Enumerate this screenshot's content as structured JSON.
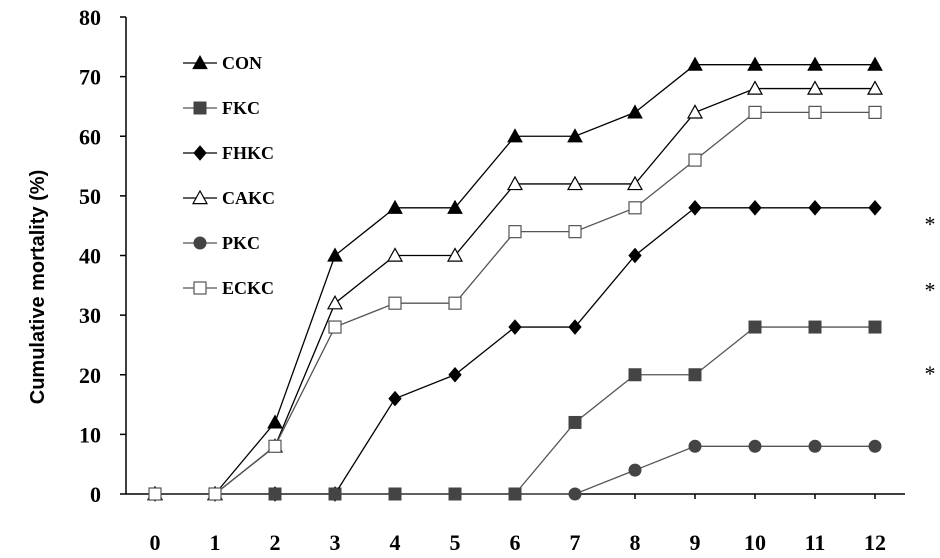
{
  "chart_data": {
    "type": "line",
    "xlabel": "",
    "ylabel": "Cumulative mortality (%)",
    "ylim": [
      0,
      80
    ],
    "yticks": [
      "0",
      "10",
      "20",
      "30",
      "40",
      "50",
      "60",
      "70",
      "80"
    ],
    "x": [
      "0",
      "1",
      "2",
      "3",
      "4",
      "5",
      "6",
      "7",
      "8",
      "9",
      "10",
      "11",
      "12"
    ],
    "grid": false,
    "legend": "top-left",
    "series": [
      {
        "name": "CON",
        "marker": "triangle-filled",
        "values": [
          0,
          0,
          12,
          40,
          48,
          48,
          60,
          60,
          64,
          72,
          72,
          72,
          72
        ]
      },
      {
        "name": "FKC",
        "marker": "square-filled",
        "values": [
          0,
          0,
          0,
          0,
          0,
          0,
          0,
          12,
          20,
          20,
          28,
          28,
          28
        ]
      },
      {
        "name": "FHKC",
        "marker": "diamond-filled",
        "values": [
          0,
          0,
          0,
          0,
          16,
          20,
          28,
          28,
          40,
          48,
          48,
          48,
          48
        ]
      },
      {
        "name": "CAKC",
        "marker": "triangle-open",
        "values": [
          0,
          0,
          8,
          32,
          40,
          40,
          52,
          52,
          52,
          64,
          68,
          68,
          68
        ]
      },
      {
        "name": "PKC",
        "marker": "circle-filled",
        "values": [
          0,
          0,
          0,
          0,
          0,
          0,
          0,
          0,
          4,
          8,
          8,
          8,
          8
        ]
      },
      {
        "name": "ECKC",
        "marker": "square-open",
        "values": [
          0,
          0,
          8,
          28,
          32,
          32,
          44,
          44,
          48,
          56,
          64,
          64,
          64
        ]
      }
    ],
    "annotations": [
      {
        "text": "*",
        "y": 46
      },
      {
        "text": "*",
        "y": 35
      },
      {
        "text": "*",
        "y": 21
      }
    ]
  }
}
